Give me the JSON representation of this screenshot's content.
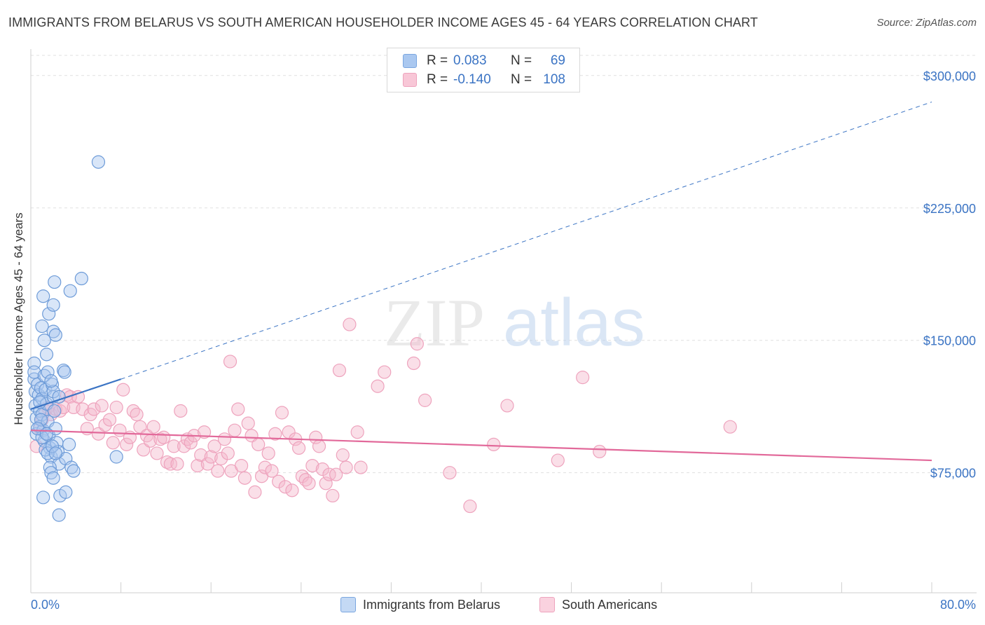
{
  "title": "IMMIGRANTS FROM BELARUS VS SOUTH AMERICAN HOUSEHOLDER INCOME AGES 45 - 64 YEARS CORRELATION CHART",
  "source": "Source: ZipAtlas.com",
  "watermark": {
    "zip": "ZIP",
    "atlas": "atlas"
  },
  "colors": {
    "blue": "#3b74c4",
    "blue_fill": "#aac8f0",
    "pink": "#e2699a",
    "pink_fill": "#f5b7cc",
    "grid": "#e0e0e0"
  },
  "legend": {
    "rows": [
      {
        "r_label": "R =",
        "r_value": "0.083",
        "n_label": "N =",
        "n_value": "69"
      },
      {
        "r_label": "R =",
        "r_value": "-0.140",
        "n_label": "N =",
        "n_value": "108"
      }
    ]
  },
  "bottom_legend": {
    "series1": "Immigrants from Belarus",
    "series2": "South Americans"
  },
  "chart_data": {
    "type": "scatter",
    "title": "IMMIGRANTS FROM BELARUS VS SOUTH AMERICAN HOUSEHOLDER INCOME AGES 45 - 64 YEARS CORRELATION CHART",
    "xlabel": "",
    "ylabel": "Householder Income Ages 45 - 64 years",
    "xlim": [
      0,
      80
    ],
    "ylim": [
      7000,
      315000
    ],
    "x_tick_labels": [
      "0.0%",
      "80.0%"
    ],
    "y_ticks": [
      75000,
      150000,
      225000,
      300000
    ],
    "y_tick_labels": [
      "$75,000",
      "$150,000",
      "$225,000",
      "$300,000"
    ],
    "series": [
      {
        "name": "Immigrants from Belarus",
        "r": 0.083,
        "n": 69,
        "trend": {
          "x0": 0,
          "y0": 111000,
          "x1": 8,
          "y1": 128000,
          "dashed_to_x": 80,
          "dashed_to_y": 285000
        },
        "points": [
          [
            0.3,
            137000
          ],
          [
            0.3,
            128000
          ],
          [
            0.4,
            121000
          ],
          [
            0.4,
            113000
          ],
          [
            0.5,
            106000
          ],
          [
            0.5,
            97000
          ],
          [
            0.3,
            132000
          ],
          [
            0.6,
            125000
          ],
          [
            0.7,
            119000
          ],
          [
            0.8,
            110000
          ],
          [
            0.8,
            101000
          ],
          [
            0.9,
            123000
          ],
          [
            1.0,
            117000
          ],
          [
            1.0,
            108000
          ],
          [
            1.1,
            99000
          ],
          [
            1.2,
            93000
          ],
          [
            1.2,
            130000
          ],
          [
            1.3,
            122000
          ],
          [
            1.4,
            114000
          ],
          [
            1.5,
            104000
          ],
          [
            1.6,
            96000
          ],
          [
            1.7,
            89000
          ],
          [
            1.8,
            84000
          ],
          [
            1.9,
            125000
          ],
          [
            2.0,
            118000
          ],
          [
            2.1,
            110000
          ],
          [
            2.2,
            100000
          ],
          [
            2.3,
            92000
          ],
          [
            2.4,
            87000
          ],
          [
            2.5,
            80000
          ],
          [
            1.0,
            158000
          ],
          [
            1.1,
            175000
          ],
          [
            1.2,
            150000
          ],
          [
            1.4,
            142000
          ],
          [
            1.6,
            165000
          ],
          [
            2.0,
            170000
          ],
          [
            2.1,
            183000
          ],
          [
            2.0,
            155000
          ],
          [
            2.2,
            153000
          ],
          [
            2.9,
            133000
          ],
          [
            3.0,
            132000
          ],
          [
            3.5,
            178000
          ],
          [
            4.5,
            185000
          ],
          [
            2.0,
            121000
          ],
          [
            2.5,
            118000
          ],
          [
            1.5,
            132000
          ],
          [
            1.8,
            127000
          ],
          [
            0.8,
            115000
          ],
          [
            0.9,
            105000
          ],
          [
            1.0,
            95000
          ],
          [
            1.3,
            88000
          ],
          [
            1.5,
            86000
          ],
          [
            1.7,
            78000
          ],
          [
            1.8,
            75000
          ],
          [
            2.0,
            72000
          ],
          [
            1.1,
            61000
          ],
          [
            2.6,
            62000
          ],
          [
            3.1,
            64000
          ],
          [
            2.5,
            51000
          ],
          [
            3.1,
            83000
          ],
          [
            3.4,
            91000
          ],
          [
            3.6,
            78000
          ],
          [
            3.8,
            76000
          ],
          [
            7.6,
            84000
          ],
          [
            6.0,
            251000
          ],
          [
            0.6,
            100000
          ],
          [
            1.4,
            97000
          ],
          [
            1.9,
            90000
          ],
          [
            2.2,
            86000
          ]
        ]
      },
      {
        "name": "South Americans",
        "r": -0.14,
        "n": 108,
        "trend": {
          "x0": 0,
          "y0": 99000,
          "x1": 80,
          "y1": 82000
        },
        "points": [
          [
            0.5,
            90000
          ],
          [
            0.8,
            100000
          ],
          [
            1.0,
            105000
          ],
          [
            1.3,
            110000
          ],
          [
            1.5,
            112000
          ],
          [
            1.8,
            108000
          ],
          [
            2.2,
            111000
          ],
          [
            2.6,
            110000
          ],
          [
            2.9,
            112000
          ],
          [
            3.2,
            119000
          ],
          [
            3.5,
            118000
          ],
          [
            3.8,
            112000
          ],
          [
            4.2,
            118000
          ],
          [
            4.6,
            111000
          ],
          [
            5.0,
            100000
          ],
          [
            5.3,
            108000
          ],
          [
            5.6,
            111000
          ],
          [
            6.0,
            97000
          ],
          [
            6.3,
            113000
          ],
          [
            6.6,
            102000
          ],
          [
            7.0,
            105000
          ],
          [
            7.3,
            92000
          ],
          [
            7.6,
            112000
          ],
          [
            7.9,
            99000
          ],
          [
            8.2,
            122000
          ],
          [
            8.5,
            91000
          ],
          [
            8.8,
            95000
          ],
          [
            9.1,
            110000
          ],
          [
            9.4,
            108000
          ],
          [
            9.7,
            101000
          ],
          [
            10.0,
            88000
          ],
          [
            10.3,
            96000
          ],
          [
            10.6,
            93000
          ],
          [
            10.9,
            101000
          ],
          [
            11.2,
            86000
          ],
          [
            11.5,
            94000
          ],
          [
            11.8,
            95000
          ],
          [
            12.1,
            81000
          ],
          [
            12.4,
            80000
          ],
          [
            12.7,
            90000
          ],
          [
            13.0,
            80000
          ],
          [
            13.3,
            110000
          ],
          [
            13.6,
            90000
          ],
          [
            13.9,
            94000
          ],
          [
            14.2,
            92000
          ],
          [
            14.5,
            96000
          ],
          [
            14.8,
            79000
          ],
          [
            15.1,
            85000
          ],
          [
            15.4,
            98000
          ],
          [
            15.7,
            80000
          ],
          [
            16.0,
            84000
          ],
          [
            16.3,
            90000
          ],
          [
            16.6,
            76000
          ],
          [
            16.9,
            83000
          ],
          [
            17.2,
            94000
          ],
          [
            17.5,
            86000
          ],
          [
            17.8,
            76000
          ],
          [
            18.1,
            99000
          ],
          [
            18.4,
            111000
          ],
          [
            18.7,
            79000
          ],
          [
            19.0,
            72000
          ],
          [
            19.3,
            103000
          ],
          [
            19.6,
            96000
          ],
          [
            19.9,
            64000
          ],
          [
            20.2,
            91000
          ],
          [
            20.5,
            73000
          ],
          [
            20.8,
            78000
          ],
          [
            21.1,
            86000
          ],
          [
            21.4,
            76000
          ],
          [
            21.7,
            97000
          ],
          [
            22.0,
            70000
          ],
          [
            22.3,
            109000
          ],
          [
            22.6,
            67000
          ],
          [
            22.9,
            98000
          ],
          [
            23.2,
            65000
          ],
          [
            23.5,
            94000
          ],
          [
            23.8,
            89000
          ],
          [
            24.1,
            73000
          ],
          [
            24.4,
            71000
          ],
          [
            24.7,
            69000
          ],
          [
            25.0,
            79000
          ],
          [
            25.3,
            95000
          ],
          [
            25.6,
            90000
          ],
          [
            25.9,
            77000
          ],
          [
            26.2,
            69000
          ],
          [
            26.5,
            74000
          ],
          [
            26.8,
            62000
          ],
          [
            27.1,
            74000
          ],
          [
            27.4,
            133000
          ],
          [
            27.7,
            85000
          ],
          [
            28.0,
            78000
          ],
          [
            28.3,
            159000
          ],
          [
            29.0,
            98000
          ],
          [
            29.3,
            78000
          ],
          [
            30.8,
            124000
          ],
          [
            31.4,
            132000
          ],
          [
            34.0,
            137000
          ],
          [
            34.3,
            148000
          ],
          [
            35.0,
            116000
          ],
          [
            37.2,
            75000
          ],
          [
            39.0,
            56000
          ],
          [
            41.1,
            91000
          ],
          [
            42.3,
            113000
          ],
          [
            46.8,
            82000
          ],
          [
            49.0,
            129000
          ],
          [
            50.5,
            87000
          ],
          [
            62.1,
            101000
          ],
          [
            17.7,
            138000
          ]
        ]
      }
    ]
  }
}
